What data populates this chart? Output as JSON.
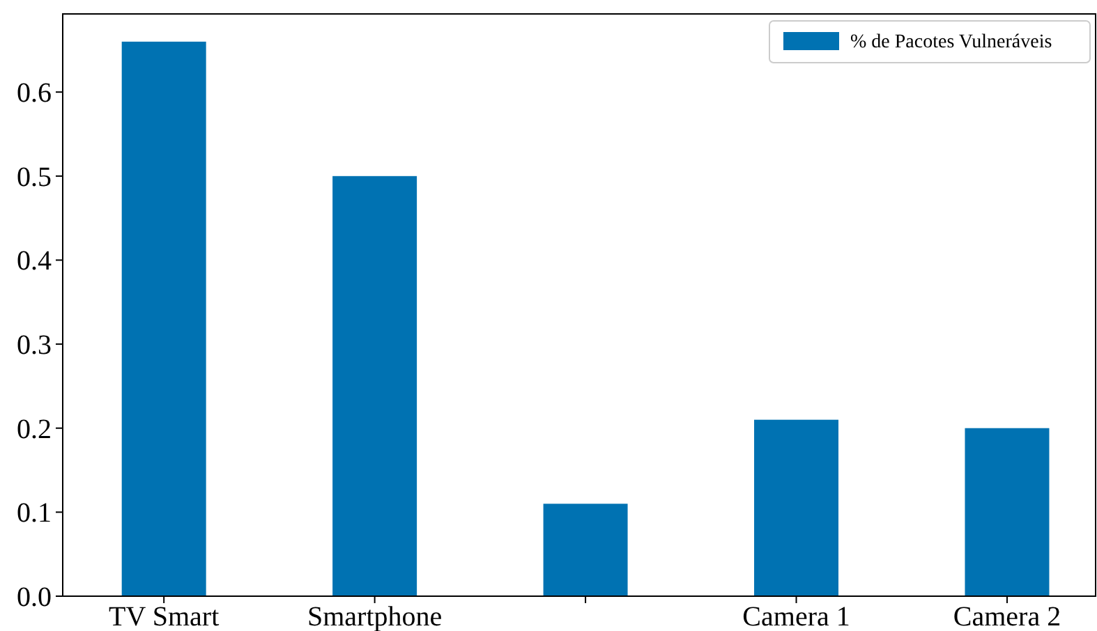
{
  "chart_data": {
    "type": "bar",
    "categories": [
      "TV Smart",
      "Smartphone",
      null,
      "Camera 1",
      "Camera 2"
    ],
    "series": [
      {
        "name": "% de Pacotes Vulneráveis",
        "color": "#0072b2",
        "values": [
          0.66,
          0.5,
          0.11,
          0.21,
          0.2
        ]
      }
    ],
    "ylim": [
      0,
      0.693
    ],
    "yticks": [
      {
        "value": 0,
        "label": "0.0"
      },
      0.1,
      0.2,
      0.3,
      0.4,
      0.5,
      0.6
    ],
    "grid": false,
    "legend": "top right"
  }
}
